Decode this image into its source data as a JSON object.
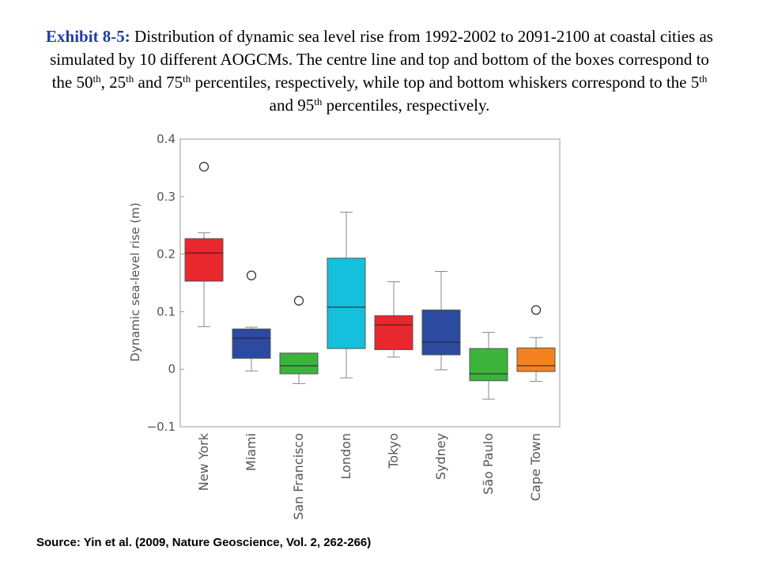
{
  "caption": {
    "lead": "Exhibit 8-5:",
    "p1": " Distribution of dynamic sea level rise from 1992-2002 to 2091-2100 at coastal cities as simulated by 10 different AOGCMs.  The centre line and top and bottom of the boxes correspond to the 50",
    "s1": "th",
    "p2": ", 25",
    "s2": "th",
    "p3": " and 75",
    "s3": "th",
    "p4": " percentiles, respectively, while top and bottom whiskers correspond to the 5",
    "s4": "th",
    "p5": " and 95",
    "s5": "th",
    "p6": " percentiles, respectively."
  },
  "source": "Source: Yin et al. (2009, Nature Geoscience, Vol. 2, 262-266)",
  "chart_data": {
    "type": "box",
    "ylabel": "Dynamic sea-level rise (m)",
    "xlabel": "",
    "ylim": [
      -0.1,
      0.4
    ],
    "yticks": [
      -0.1,
      0,
      0.1,
      0.2,
      0.3,
      0.4
    ],
    "ytick_labels": [
      "−0.1",
      "0",
      "0.1",
      "0.2",
      "0.3",
      "0.4"
    ],
    "grid": false,
    "categories": [
      "New York",
      "Miami",
      "San Francisco",
      "London",
      "Tokyo",
      "Sydney",
      "São Paulo",
      "Cape Town"
    ],
    "boxes": [
      {
        "category": "New York",
        "whisker_low": 0.074,
        "q1": 0.153,
        "median": 0.202,
        "q3": 0.227,
        "whisker_high": 0.237,
        "outliers": [
          0.352
        ],
        "color": "#e8282d"
      },
      {
        "category": "Miami",
        "whisker_low": -0.003,
        "q1": 0.019,
        "median": 0.054,
        "q3": 0.07,
        "whisker_high": 0.073,
        "outliers": [
          0.163
        ],
        "color": "#2b4aa0"
      },
      {
        "category": "San Francisco",
        "whisker_low": -0.025,
        "q1": -0.008,
        "median": 0.006,
        "q3": 0.028,
        "whisker_high": 0.028,
        "outliers": [
          0.119
        ],
        "color": "#3cb43c"
      },
      {
        "category": "London",
        "whisker_low": -0.015,
        "q1": 0.036,
        "median": 0.108,
        "q3": 0.193,
        "whisker_high": 0.273,
        "outliers": [],
        "color": "#14c0dc"
      },
      {
        "category": "Tokyo",
        "whisker_low": 0.021,
        "q1": 0.034,
        "median": 0.077,
        "q3": 0.093,
        "whisker_high": 0.152,
        "outliers": [],
        "color": "#e8282d"
      },
      {
        "category": "Sydney",
        "whisker_low": -0.001,
        "q1": 0.025,
        "median": 0.047,
        "q3": 0.103,
        "whisker_high": 0.17,
        "outliers": [],
        "color": "#2b4aa0"
      },
      {
        "category": "São Paulo",
        "whisker_low": -0.052,
        "q1": -0.02,
        "median": -0.008,
        "q3": 0.036,
        "whisker_high": 0.064,
        "outliers": [],
        "color": "#3cb43c"
      },
      {
        "category": "Cape Town",
        "whisker_low": -0.021,
        "q1": -0.004,
        "median": 0.006,
        "q3": 0.037,
        "whisker_high": 0.055,
        "outliers": [
          0.103
        ],
        "color": "#f58220"
      }
    ]
  }
}
